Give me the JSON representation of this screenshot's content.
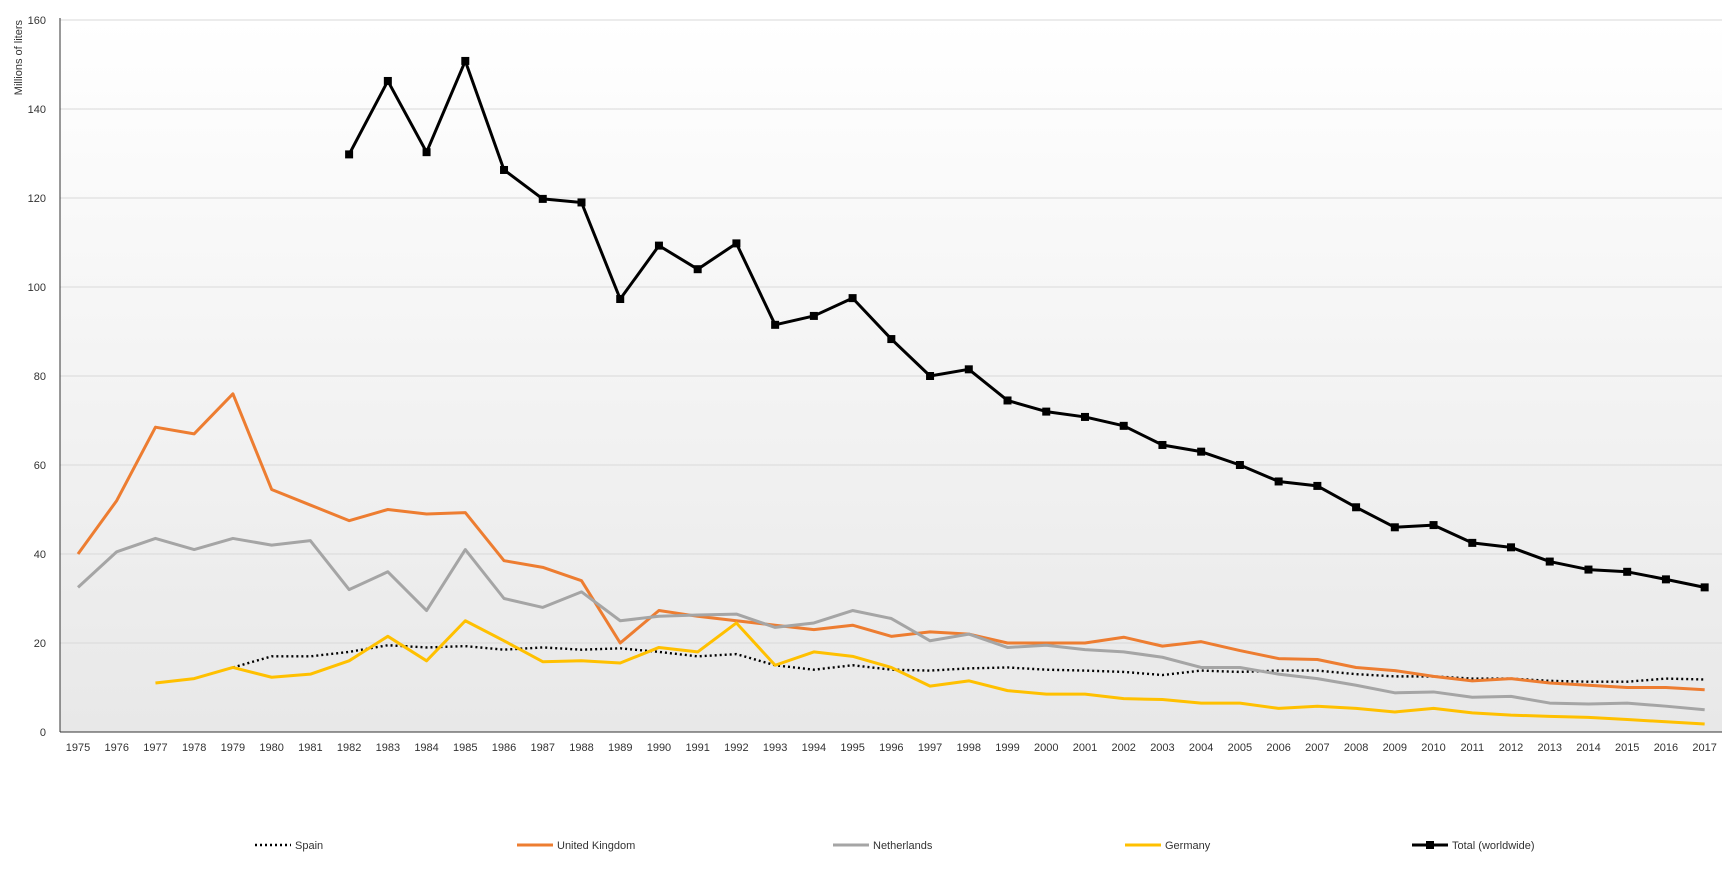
{
  "chart_data": {
    "type": "line",
    "title": "",
    "xlabel": "",
    "ylabel": "Millions of liters",
    "ylim": [
      0,
      160
    ],
    "yticks": [
      0,
      20,
      40,
      60,
      80,
      100,
      120,
      140,
      160
    ],
    "grid": true,
    "legend_position": "bottom",
    "x": [
      1975,
      1976,
      1977,
      1978,
      1979,
      1980,
      1981,
      1982,
      1983,
      1984,
      1985,
      1986,
      1987,
      1988,
      1989,
      1990,
      1991,
      1992,
      1993,
      1994,
      1995,
      1996,
      1997,
      1998,
      1999,
      2000,
      2001,
      2002,
      2003,
      2004,
      2005,
      2006,
      2007,
      2008,
      2009,
      2010,
      2011,
      2012,
      2013,
      2014,
      2015,
      2016,
      2017
    ],
    "series": [
      {
        "name": "Spain",
        "color": "#000000",
        "style": "dotted",
        "marker": "none",
        "values": [
          null,
          null,
          null,
          null,
          14.5,
          17,
          17,
          18,
          19.5,
          19,
          19.3,
          18.5,
          19,
          18.5,
          18.8,
          18,
          17,
          17.5,
          15,
          14,
          15,
          14,
          13.8,
          14.3,
          14.5,
          14,
          13.8,
          13.5,
          12.8,
          13.8,
          13.5,
          13.8,
          13.8,
          13,
          12.5,
          12.5,
          12,
          12,
          11.5,
          11.3,
          11.3,
          12,
          11.8
        ]
      },
      {
        "name": "United Kingdom",
        "color": "#ED7D31",
        "style": "solid",
        "marker": "none",
        "values": [
          40,
          52,
          68.5,
          67,
          76,
          54.5,
          51,
          47.5,
          50,
          49,
          49.3,
          38.5,
          37,
          34,
          20,
          27.3,
          26,
          25,
          24,
          23,
          24,
          21.5,
          22.5,
          22,
          20,
          20,
          20,
          21.3,
          19.3,
          20.3,
          18.3,
          16.5,
          16.3,
          14.5,
          13.8,
          12.5,
          11.5,
          12,
          11,
          10.5,
          10,
          10,
          9.5
        ]
      },
      {
        "name": "Netherlands",
        "color": "#A5A5A5",
        "style": "solid",
        "marker": "none",
        "values": [
          32.5,
          40.5,
          43.5,
          41,
          43.5,
          42,
          43,
          32,
          36,
          27.3,
          41,
          30,
          28,
          31.5,
          25,
          26,
          26.3,
          26.5,
          23.5,
          24.5,
          27.3,
          25.5,
          20.5,
          22,
          19,
          19.5,
          18.5,
          18,
          16.8,
          14.5,
          14.5,
          13,
          12,
          10.5,
          8.8,
          9,
          7.8,
          8,
          6.5,
          6.3,
          6.5,
          5.8,
          5
        ]
      },
      {
        "name": "Germany",
        "color": "#FFC000",
        "style": "solid",
        "marker": "none",
        "values": [
          null,
          null,
          11,
          12,
          14.5,
          12.3,
          13,
          16,
          21.5,
          16,
          25,
          20.5,
          15.8,
          16,
          15.5,
          19,
          18,
          24.5,
          15,
          18,
          17,
          14.5,
          10.3,
          11.5,
          9.3,
          8.5,
          8.5,
          7.5,
          7.3,
          6.5,
          6.5,
          5.3,
          5.8,
          5.3,
          4.5,
          5.3,
          4.3,
          3.8,
          3.5,
          3.3,
          2.8,
          2.3,
          1.8
        ]
      },
      {
        "name": "Total (worldwide)",
        "color": "#000000",
        "style": "solid",
        "marker": "square",
        "values": [
          null,
          null,
          null,
          null,
          null,
          null,
          null,
          129.8,
          146.3,
          130.3,
          150.8,
          126.3,
          119.8,
          119,
          97.3,
          109.3,
          104,
          109.8,
          91.5,
          93.5,
          97.5,
          88.3,
          80,
          81.5,
          74.5,
          72,
          70.8,
          68.8,
          64.5,
          63,
          60,
          56.3,
          55.3,
          50.5,
          46,
          46.5,
          42.5,
          41.5,
          38.3,
          36.5,
          36,
          34.3,
          32.5
        ]
      }
    ]
  }
}
